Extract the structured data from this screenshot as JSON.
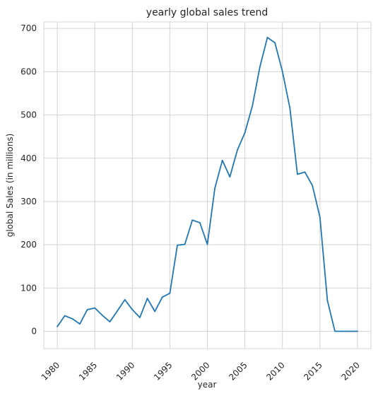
{
  "chart_data": {
    "type": "line",
    "title": "yearly global sales trend",
    "xlabel": "year",
    "ylabel": "global Sales (in millions)",
    "xlim": [
      1978.2,
      2021.8
    ],
    "ylim": [
      -40,
      715
    ],
    "xticks": [
      1980,
      1985,
      1990,
      1995,
      2000,
      2005,
      2010,
      2015,
      2020
    ],
    "yticks": [
      0,
      100,
      200,
      300,
      400,
      500,
      600,
      700
    ],
    "grid": true,
    "series": [
      {
        "color": "#1f77b4",
        "x": [
          1980,
          1981,
          1982,
          1983,
          1984,
          1985,
          1986,
          1987,
          1988,
          1989,
          1990,
          1991,
          1992,
          1993,
          1994,
          1995,
          1996,
          1997,
          1998,
          1999,
          2000,
          2001,
          2002,
          2003,
          2004,
          2005,
          2006,
          2007,
          2008,
          2009,
          2010,
          2011,
          2012,
          2013,
          2014,
          2015,
          2016,
          2017,
          2018,
          2019,
          2020
        ],
        "values": [
          11,
          36,
          29,
          17,
          50,
          54,
          37,
          22,
          47,
          73,
          50,
          32,
          76,
          46,
          79,
          88,
          199,
          201,
          257,
          251,
          201,
          331,
          395,
          357,
          419,
          459,
          521,
          611,
          679,
          667,
          601,
          516,
          363,
          368,
          337,
          264,
          71,
          0,
          0,
          0,
          0
        ]
      }
    ]
  }
}
